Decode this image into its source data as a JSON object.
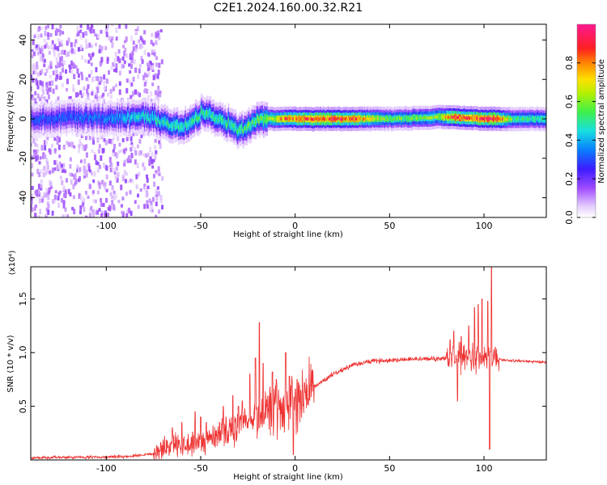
{
  "figure_title": "C2E1.2024.160.00.32.R21",
  "colors": {
    "snr_line": "#ee3030",
    "axes": "#000000",
    "background": "#ffffff"
  },
  "chart_data": [
    {
      "type": "heatmap",
      "xlabel": "Height of straight line (km)",
      "ylabel": "Frequency (Hz)",
      "xlim": [
        -140,
        133
      ],
      "ylim": [
        -50,
        48
      ],
      "x_ticks": [
        -100,
        -50,
        0,
        50,
        100
      ],
      "x_tick_labels": [
        "-100",
        "-50",
        "0",
        "50",
        "100"
      ],
      "y_ticks": [
        -40,
        -20,
        0,
        20,
        40
      ],
      "y_tick_labels": [
        "-40",
        "-20",
        "0",
        "20",
        "40"
      ],
      "colorbar": {
        "label": "Normalized spectral amplitude",
        "range": [
          0,
          1
        ],
        "ticks": [
          0.0,
          0.2,
          0.4,
          0.6,
          0.8
        ],
        "tick_labels": [
          "0.0",
          "0.2",
          "0.4",
          "0.6",
          "0.8"
        ],
        "colormap": "rainbow (white-purple-blue-cyan-green-yellow-orange-red-magenta)"
      },
      "ridge_center_hz": [
        [
          -140,
          0
        ],
        [
          -120,
          0.5
        ],
        [
          -100,
          0.5
        ],
        [
          -80,
          1
        ],
        [
          -75,
          0.5
        ],
        [
          -70,
          -2
        ],
        [
          -65,
          -3
        ],
        [
          -60,
          -4
        ],
        [
          -55,
          -2
        ],
        [
          -50,
          3
        ],
        [
          -45,
          2
        ],
        [
          -40,
          -1
        ],
        [
          -35,
          -2
        ],
        [
          -30,
          -6
        ],
        [
          -25,
          -4
        ],
        [
          -20,
          0
        ],
        [
          -10,
          0
        ],
        [
          0,
          0
        ],
        [
          50,
          0
        ],
        [
          80,
          1
        ],
        [
          100,
          0
        ],
        [
          133,
          0
        ]
      ],
      "ridge_peak_amplitude": [
        [
          -140,
          0.3
        ],
        [
          -100,
          0.35
        ],
        [
          -80,
          0.45
        ],
        [
          -60,
          0.5
        ],
        [
          -40,
          0.5
        ],
        [
          -20,
          0.55
        ],
        [
          -5,
          0.8
        ],
        [
          10,
          0.9
        ],
        [
          30,
          0.85
        ],
        [
          50,
          0.55
        ],
        [
          75,
          0.6
        ],
        [
          85,
          0.9
        ],
        [
          95,
          0.85
        ],
        [
          105,
          0.95
        ],
        [
          115,
          0.55
        ],
        [
          133,
          0.5
        ]
      ]
    },
    {
      "type": "line",
      "xlabel": "Height of straight line (km)",
      "ylabel": "SNR (10 * v/v)",
      "y_multiplier": "(x10⁴)",
      "xlim": [
        -140,
        133
      ],
      "ylim": [
        0,
        1.8
      ],
      "x_ticks": [
        -100,
        -50,
        0,
        50,
        100
      ],
      "x_tick_labels": [
        "-100",
        "-50",
        "0",
        "50",
        "100"
      ],
      "y_ticks": [
        0.5,
        1.0,
        1.5
      ],
      "y_tick_labels": [
        "0.5",
        "1.0",
        "1.5"
      ],
      "series": [
        {
          "baseline": [
            [
              -140,
              0.02
            ],
            [
              -90,
              0.03
            ],
            [
              -75,
              0.06
            ],
            [
              -65,
              0.15
            ],
            [
              -55,
              0.15
            ],
            [
              -45,
              0.2
            ],
            [
              -40,
              0.25
            ],
            [
              -30,
              0.3
            ],
            [
              -20,
              0.38
            ],
            [
              -10,
              0.45
            ],
            [
              0,
              0.55
            ],
            [
              10,
              0.68
            ],
            [
              20,
              0.8
            ],
            [
              30,
              0.88
            ],
            [
              40,
              0.92
            ],
            [
              50,
              0.93
            ],
            [
              60,
              0.94
            ],
            [
              70,
              0.94
            ],
            [
              80,
              0.95
            ],
            [
              95,
              0.95
            ],
            [
              105,
              0.96
            ],
            [
              110,
              0.93
            ],
            [
              120,
              0.92
            ],
            [
              133,
              0.91
            ]
          ],
          "spikes": [
            [
              -65,
              0.3
            ],
            [
              -60,
              0.35
            ],
            [
              -53,
              0.45
            ],
            [
              -50,
              0.4
            ],
            [
              -47,
              0.35
            ],
            [
              -40,
              0.35
            ],
            [
              -38,
              0.5
            ],
            [
              -33,
              0.6
            ],
            [
              -30,
              0.5
            ],
            [
              -28,
              0.55
            ],
            [
              -24,
              0.8
            ],
            [
              -21,
              0.95
            ],
            [
              -19,
              1.28
            ],
            [
              -17,
              0.9
            ],
            [
              -12,
              0.82
            ],
            [
              -10,
              0.75
            ],
            [
              -5,
              1.0
            ],
            [
              -3,
              0.78
            ],
            [
              -1,
              0.05
            ],
            [
              1,
              0.75
            ],
            [
              5,
              0.72
            ],
            [
              8,
              0.7
            ],
            [
              82,
              1.12
            ],
            [
              84,
              1.2
            ],
            [
              86,
              0.55
            ],
            [
              88,
              1.15
            ],
            [
              92,
              1.25
            ],
            [
              95,
              1.42
            ],
            [
              97,
              1.45
            ],
            [
              99,
              1.5
            ],
            [
              102,
              1.48
            ],
            [
              103,
              0.1
            ],
            [
              104,
              1.8
            ],
            [
              106,
              1.05
            ]
          ]
        }
      ]
    }
  ]
}
